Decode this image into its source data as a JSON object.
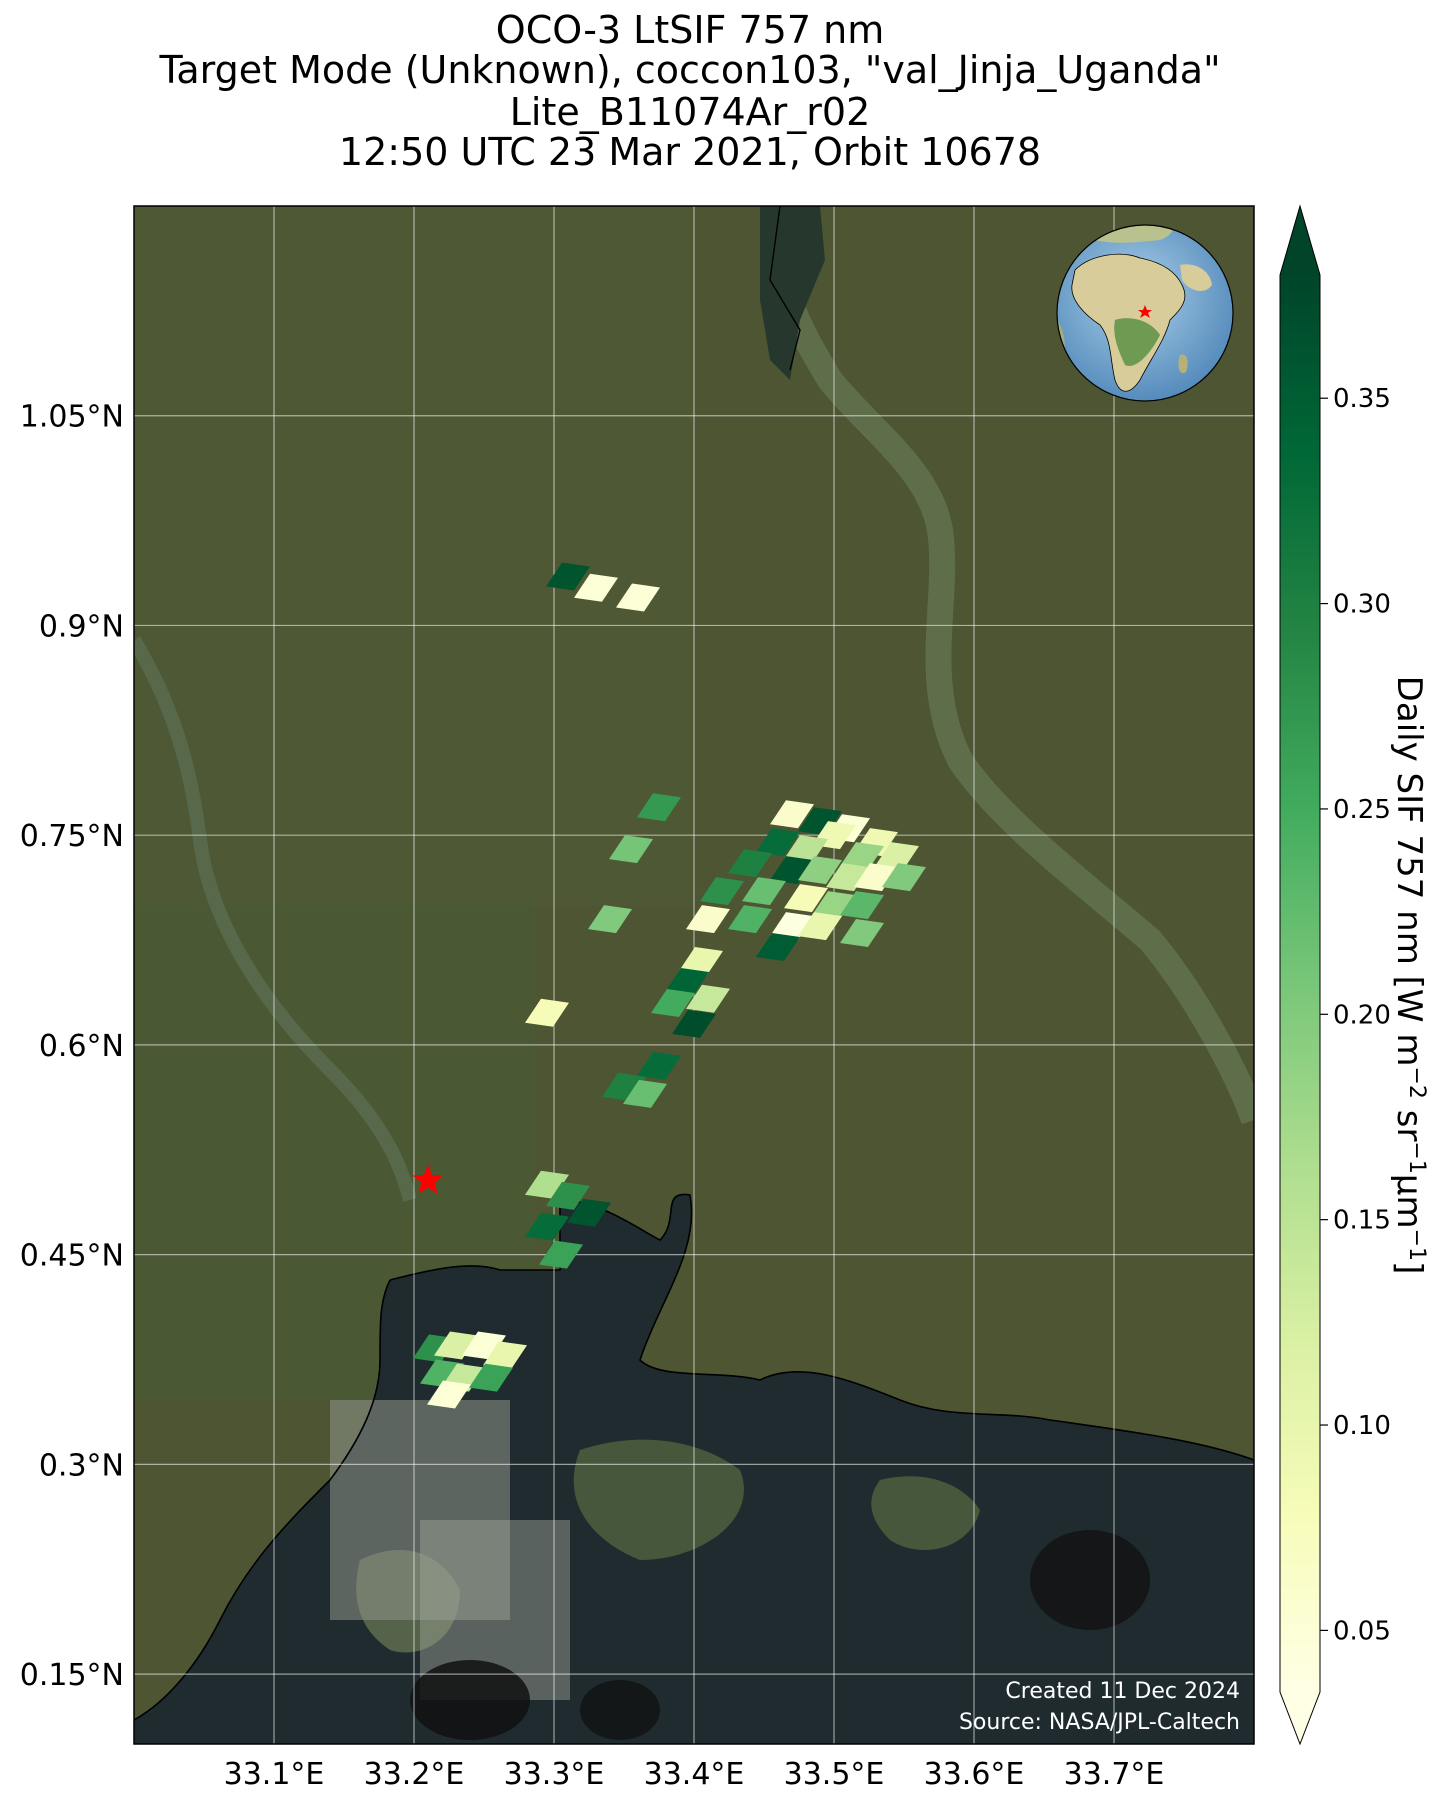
{
  "title": {
    "line1": "OCO-3 LtSIF 757 nm",
    "line2": "Target Mode (Unknown), coccon103, \"val_Jinja_Uganda\"",
    "line3": "Lite_B11074Ar_r02",
    "line4": "12:50 UTC 23 Mar 2021, Orbit 10678"
  },
  "map": {
    "lon_range": [
      33.0,
      33.8
    ],
    "lat_range": [
      0.1,
      1.2
    ],
    "lon_ticks": [
      "33.1°E",
      "33.2°E",
      "33.3°E",
      "33.4°E",
      "33.5°E",
      "33.6°E",
      "33.7°E"
    ],
    "lat_ticks": [
      "1.05°N",
      "0.9°N",
      "0.75°N",
      "0.6°N",
      "0.45°N",
      "0.3°N",
      "0.15°N"
    ],
    "gridlines": true,
    "target_marker": {
      "lon": 33.21,
      "lat": 0.503,
      "symbol": "star",
      "color": "#ff0000"
    },
    "inset": "globe",
    "credit_line1": "Created 11 Dec 2024",
    "credit_line2": "Source: NASA/JPL-Caltech"
  },
  "colorbar": {
    "label_main": "Daily SIF 757 nm [W m",
    "label_sup1": "−2",
    "label_mid": " sr",
    "label_sup2": "−1",
    "label_mu": "μm",
    "label_sup3": "−1",
    "label_end": "]",
    "ticks": [
      "0.35",
      "0.30",
      "0.25",
      "0.20",
      "0.15",
      "0.10",
      "0.05"
    ],
    "range": [
      0.035,
      0.38
    ],
    "colormap": "YlGn",
    "extend": "both"
  },
  "chart_data": {
    "type": "scatter",
    "units": "W m-2 sr-1 um-1",
    "soundings": [
      {
        "lon": 33.31,
        "lat": 0.935,
        "sif": 0.36
      },
      {
        "lon": 33.33,
        "lat": 0.927,
        "sif": 0.05
      },
      {
        "lon": 33.36,
        "lat": 0.92,
        "sif": 0.05
      },
      {
        "lon": 33.375,
        "lat": 0.77,
        "sif": 0.27
      },
      {
        "lon": 33.355,
        "lat": 0.74,
        "sif": 0.21
      },
      {
        "lon": 33.34,
        "lat": 0.69,
        "sif": 0.2
      },
      {
        "lon": 33.47,
        "lat": 0.765,
        "sif": 0.06
      },
      {
        "lon": 33.49,
        "lat": 0.76,
        "sif": 0.36
      },
      {
        "lon": 33.51,
        "lat": 0.755,
        "sif": 0.05
      },
      {
        "lon": 33.5,
        "lat": 0.75,
        "sif": 0.09
      },
      {
        "lon": 33.53,
        "lat": 0.745,
        "sif": 0.09
      },
      {
        "lon": 33.46,
        "lat": 0.745,
        "sif": 0.33
      },
      {
        "lon": 33.48,
        "lat": 0.74,
        "sif": 0.15
      },
      {
        "lon": 33.52,
        "lat": 0.735,
        "sif": 0.18
      },
      {
        "lon": 33.545,
        "lat": 0.735,
        "sif": 0.12
      },
      {
        "lon": 33.44,
        "lat": 0.73,
        "sif": 0.3
      },
      {
        "lon": 33.47,
        "lat": 0.725,
        "sif": 0.36
      },
      {
        "lon": 33.49,
        "lat": 0.725,
        "sif": 0.19
      },
      {
        "lon": 33.51,
        "lat": 0.72,
        "sif": 0.14
      },
      {
        "lon": 33.53,
        "lat": 0.72,
        "sif": 0.06
      },
      {
        "lon": 33.55,
        "lat": 0.72,
        "sif": 0.2
      },
      {
        "lon": 33.42,
        "lat": 0.71,
        "sif": 0.28
      },
      {
        "lon": 33.45,
        "lat": 0.71,
        "sif": 0.22
      },
      {
        "lon": 33.48,
        "lat": 0.705,
        "sif": 0.08
      },
      {
        "lon": 33.5,
        "lat": 0.7,
        "sif": 0.18
      },
      {
        "lon": 33.52,
        "lat": 0.7,
        "sif": 0.23
      },
      {
        "lon": 33.41,
        "lat": 0.69,
        "sif": 0.06
      },
      {
        "lon": 33.44,
        "lat": 0.69,
        "sif": 0.24
      },
      {
        "lon": 33.47,
        "lat": 0.685,
        "sif": 0.04
      },
      {
        "lon": 33.49,
        "lat": 0.685,
        "sif": 0.1
      },
      {
        "lon": 33.52,
        "lat": 0.68,
        "sif": 0.2
      },
      {
        "lon": 33.46,
        "lat": 0.67,
        "sif": 0.35
      },
      {
        "lon": 33.405,
        "lat": 0.66,
        "sif": 0.1
      },
      {
        "lon": 33.395,
        "lat": 0.645,
        "sif": 0.34
      },
      {
        "lon": 33.385,
        "lat": 0.63,
        "sif": 0.25
      },
      {
        "lon": 33.41,
        "lat": 0.633,
        "sif": 0.14
      },
      {
        "lon": 33.4,
        "lat": 0.615,
        "sif": 0.37
      },
      {
        "lon": 33.295,
        "lat": 0.623,
        "sif": 0.08
      },
      {
        "lon": 33.375,
        "lat": 0.585,
        "sif": 0.33
      },
      {
        "lon": 33.35,
        "lat": 0.57,
        "sif": 0.3
      },
      {
        "lon": 33.365,
        "lat": 0.565,
        "sif": 0.22
      },
      {
        "lon": 33.295,
        "lat": 0.5,
        "sif": 0.16
      },
      {
        "lon": 33.31,
        "lat": 0.492,
        "sif": 0.28
      },
      {
        "lon": 33.325,
        "lat": 0.48,
        "sif": 0.36
      },
      {
        "lon": 33.295,
        "lat": 0.47,
        "sif": 0.33
      },
      {
        "lon": 33.305,
        "lat": 0.45,
        "sif": 0.26
      },
      {
        "lon": 33.215,
        "lat": 0.383,
        "sif": 0.28
      },
      {
        "lon": 33.23,
        "lat": 0.385,
        "sif": 0.12
      },
      {
        "lon": 33.25,
        "lat": 0.385,
        "sif": 0.05
      },
      {
        "lon": 33.265,
        "lat": 0.378,
        "sif": 0.1
      },
      {
        "lon": 33.22,
        "lat": 0.365,
        "sif": 0.24
      },
      {
        "lon": 33.235,
        "lat": 0.362,
        "sif": 0.14
      },
      {
        "lon": 33.255,
        "lat": 0.362,
        "sif": 0.26
      },
      {
        "lon": 33.225,
        "lat": 0.35,
        "sif": 0.05
      }
    ]
  }
}
